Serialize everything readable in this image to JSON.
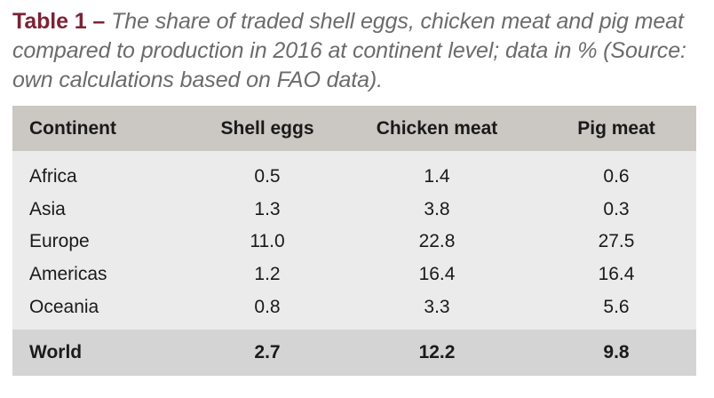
{
  "caption": {
    "label": "Table 1 –",
    "text": "The share of traded shell eggs, chicken meat and pig meat compared to production in 2016 at continent level; data in % (Source: own calculations based on FAO data)."
  },
  "table": {
    "headers": [
      "Continent",
      "Shell eggs",
      "Chicken meat",
      "Pig meat"
    ],
    "rows": [
      [
        "Africa",
        "0.5",
        "1.4",
        "0.6"
      ],
      [
        "Asia",
        "1.3",
        "3.8",
        "0.3"
      ],
      [
        "Europe",
        "11.0",
        "22.8",
        "27.5"
      ],
      [
        "Americas",
        "1.2",
        "16.4",
        "16.4"
      ],
      [
        "Oceania",
        "0.8",
        "3.3",
        "5.6"
      ]
    ],
    "total": [
      "World",
      "2.7",
      "12.2",
      "9.8"
    ]
  },
  "colors": {
    "label": "#7b2335",
    "caption_text": "#6b6b6b",
    "header_bg": "#cbc7c2",
    "body_bg": "#ebebeb",
    "total_bg": "#d4d4d4"
  }
}
